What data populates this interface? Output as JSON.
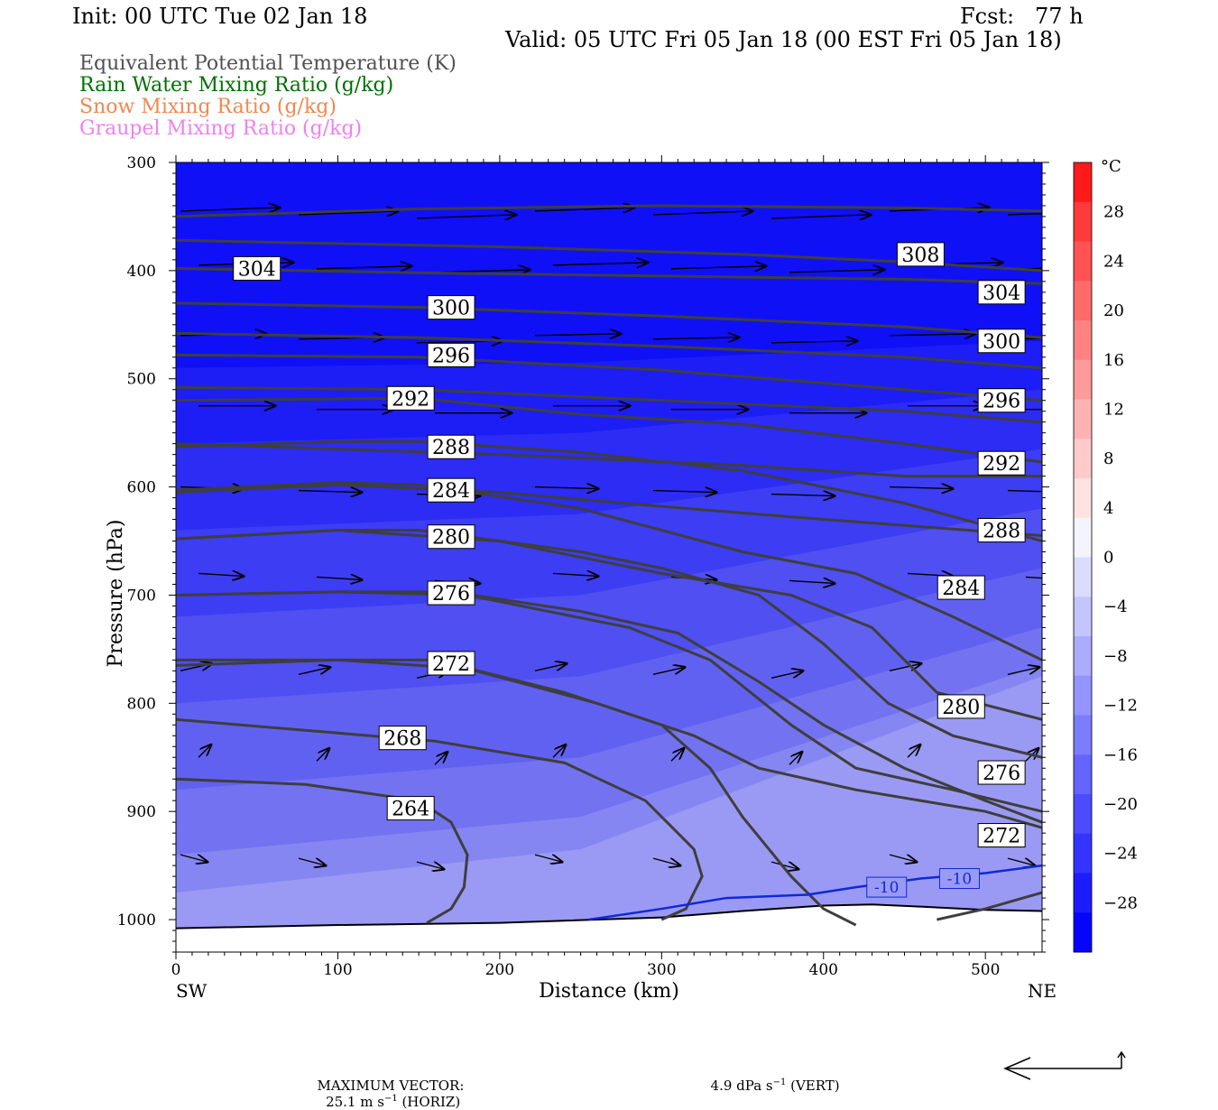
{
  "header": {
    "init": "Init: 00 UTC Tue 02 Jan 18",
    "fcst": "Fcst:   77 h",
    "valid": "Valid: 05 UTC Fri 05 Jan 18 (00 EST Fri 05 Jan 18)"
  },
  "fields": [
    {
      "label": "Equivalent Potential Temperature (K)",
      "color": "#505050"
    },
    {
      "label": "Rain Water Mixing Ratio (g/kg)",
      "color": "#007000"
    },
    {
      "label": "Snow Mixing Ratio (g/kg)",
      "color": "#f08850"
    },
    {
      "label": "Graupel Mixing Ratio (g/kg)",
      "color": "#f080f0"
    }
  ],
  "chart_data": {
    "type": "cross-section",
    "xlabel": "Distance (km)",
    "ylabel": "Pressure (hPa)",
    "xlim": [
      0,
      535
    ],
    "ylim": [
      1030,
      300
    ],
    "x_ticks": [
      "0",
      "100",
      "200",
      "300",
      "400",
      "500"
    ],
    "y_ticks": [
      "300",
      "400",
      "500",
      "600",
      "700",
      "800",
      "900",
      "1000"
    ],
    "left_end": "SW",
    "right_end": "NE",
    "theta_e_contours": [
      {
        "label": "308",
        "lx": 460,
        "lp": 385,
        "points": [
          [
            0,
            350
          ],
          [
            150,
            343
          ],
          [
            300,
            340
          ],
          [
            450,
            342
          ],
          [
            535,
            345
          ]
        ]
      },
      {
        "label": "304",
        "lx": 50,
        "lp": 398,
        "points": [
          [
            0,
            398
          ],
          [
            150,
            402
          ],
          [
            300,
            405
          ],
          [
            450,
            408
          ],
          [
            535,
            412
          ]
        ]
      },
      {
        "label": "304",
        "lx": 510,
        "lp": 420,
        "points": [
          [
            0,
            372
          ],
          [
            200,
            378
          ],
          [
            350,
            385
          ],
          [
            450,
            392
          ],
          [
            535,
            400
          ]
        ]
      },
      {
        "label": "300",
        "lx": 170,
        "lp": 434,
        "points": [
          [
            0,
            430
          ],
          [
            150,
            434
          ],
          [
            300,
            442
          ],
          [
            450,
            452
          ],
          [
            535,
            462
          ]
        ]
      },
      {
        "label": "300",
        "lx": 510,
        "lp": 465,
        "points": [
          [
            0,
            458
          ],
          [
            150,
            462
          ],
          [
            300,
            470
          ],
          [
            450,
            480
          ],
          [
            535,
            490
          ]
        ]
      },
      {
        "label": "296",
        "lx": 170,
        "lp": 478,
        "points": [
          [
            0,
            478
          ],
          [
            150,
            480
          ],
          [
            300,
            492
          ],
          [
            450,
            510
          ],
          [
            535,
            520
          ]
        ]
      },
      {
        "label": "296",
        "lx": 510,
        "lp": 520,
        "points": [
          [
            0,
            508
          ],
          [
            150,
            510
          ],
          [
            300,
            520
          ],
          [
            450,
            530
          ],
          [
            535,
            540
          ]
        ]
      },
      {
        "label": "292",
        "lx": 145,
        "lp": 518,
        "points": [
          [
            0,
            520
          ],
          [
            150,
            518
          ],
          [
            250,
            533
          ],
          [
            350,
            542
          ],
          [
            450,
            560
          ],
          [
            535,
            577
          ]
        ]
      },
      {
        "label": "292",
        "lx": 510,
        "lp": 578,
        "points": [
          [
            0,
            560
          ],
          [
            100,
            565
          ],
          [
            200,
            570
          ],
          [
            350,
            580
          ],
          [
            450,
            590
          ],
          [
            535,
            590
          ]
        ]
      },
      {
        "label": "288",
        "lx": 170,
        "lp": 563,
        "points": [
          [
            0,
            563
          ],
          [
            100,
            558
          ],
          [
            150,
            558
          ],
          [
            250,
            568
          ],
          [
            350,
            585
          ],
          [
            450,
            615
          ],
          [
            535,
            650
          ]
        ]
      },
      {
        "label": "288",
        "lx": 510,
        "lp": 640,
        "points": [
          [
            0,
            605
          ],
          [
            100,
            598
          ],
          [
            200,
            605
          ],
          [
            300,
            618
          ],
          [
            400,
            630
          ],
          [
            535,
            645
          ]
        ]
      },
      {
        "label": "284",
        "lx": 170,
        "lp": 603,
        "points": [
          [
            0,
            603
          ],
          [
            100,
            596
          ],
          [
            150,
            598
          ],
          [
            250,
            620
          ],
          [
            350,
            660
          ],
          [
            420,
            680
          ],
          [
            480,
            720
          ],
          [
            535,
            760
          ]
        ]
      },
      {
        "label": "284",
        "lx": 485,
        "lp": 693,
        "points": [
          [
            0,
            648
          ],
          [
            100,
            640
          ],
          [
            200,
            650
          ],
          [
            300,
            680
          ],
          [
            380,
            700
          ],
          [
            430,
            730
          ],
          [
            470,
            790
          ],
          [
            535,
            815
          ]
        ]
      },
      {
        "label": "280",
        "lx": 170,
        "lp": 646,
        "points": [
          [
            0,
            648
          ],
          [
            100,
            640
          ],
          [
            150,
            640
          ],
          [
            250,
            660
          ],
          [
            300,
            675
          ],
          [
            360,
            700
          ],
          [
            400,
            745
          ],
          [
            440,
            800
          ],
          [
            480,
            830
          ],
          [
            535,
            850
          ]
        ]
      },
      {
        "label": "280",
        "lx": 485,
        "lp": 803,
        "points": [
          [
            0,
            700
          ],
          [
            100,
            697
          ],
          [
            180,
            700
          ],
          [
            280,
            730
          ],
          [
            330,
            760
          ],
          [
            380,
            820
          ],
          [
            420,
            860
          ],
          [
            480,
            880
          ],
          [
            535,
            900
          ]
        ]
      },
      {
        "label": "276",
        "lx": 170,
        "lp": 698,
        "points": [
          [
            0,
            700
          ],
          [
            100,
            697
          ],
          [
            170,
            697
          ],
          [
            250,
            715
          ],
          [
            310,
            735
          ],
          [
            360,
            780
          ],
          [
            400,
            820
          ],
          [
            450,
            860
          ],
          [
            500,
            890
          ],
          [
            535,
            910
          ]
        ]
      },
      {
        "label": "276",
        "lx": 510,
        "lp": 864,
        "points": [
          [
            0,
            760
          ],
          [
            100,
            760
          ],
          [
            180,
            768
          ],
          [
            260,
            800
          ],
          [
            320,
            830
          ],
          [
            360,
            860
          ],
          [
            420,
            880
          ],
          [
            500,
            900
          ],
          [
            535,
            915
          ]
        ]
      },
      {
        "label": "272",
        "lx": 170,
        "lp": 763,
        "points": [
          [
            0,
            765
          ],
          [
            100,
            760
          ],
          [
            160,
            760
          ],
          [
            240,
            790
          ],
          [
            300,
            820
          ],
          [
            330,
            860
          ],
          [
            350,
            905
          ],
          [
            380,
            960
          ],
          [
            400,
            990
          ],
          [
            420,
            1005
          ]
        ]
      },
      {
        "label": "272",
        "lx": 510,
        "lp": 922,
        "points": [
          [
            470,
            1000
          ],
          [
            500,
            990
          ],
          [
            535,
            975
          ]
        ]
      },
      {
        "label": "268",
        "lx": 140,
        "lp": 832,
        "points": [
          [
            0,
            815
          ],
          [
            80,
            825
          ],
          [
            160,
            835
          ],
          [
            240,
            855
          ],
          [
            290,
            890
          ],
          [
            320,
            935
          ],
          [
            325,
            960
          ],
          [
            315,
            990
          ],
          [
            300,
            1000
          ]
        ]
      },
      {
        "label": "264",
        "lx": 145,
        "lp": 897,
        "points": [
          [
            0,
            870
          ],
          [
            80,
            875
          ],
          [
            150,
            890
          ],
          [
            170,
            910
          ],
          [
            180,
            940
          ],
          [
            178,
            970
          ],
          [
            170,
            990
          ],
          [
            155,
            1003
          ]
        ]
      }
    ],
    "temperature_contours": [
      {
        "label": "-10",
        "points": [
          [
            255,
            1000
          ],
          [
            300,
            990
          ],
          [
            340,
            980
          ],
          [
            390,
            977
          ],
          [
            420,
            970
          ],
          [
            460,
            962
          ],
          [
            500,
            957
          ],
          [
            535,
            950
          ]
        ]
      }
    ],
    "colorbar": {
      "unit": "°C",
      "tick_labels": [
        "28",
        "24",
        "20",
        "16",
        "12",
        "8",
        "4",
        "0",
        "−4",
        "−8",
        "−12",
        "−16",
        "−20",
        "−24",
        "−28"
      ],
      "colors": [
        "#ff1a1a",
        "#ff3a3a",
        "#ff5252",
        "#ff6a6a",
        "#ff8282",
        "#ff9a9a",
        "#ffb2b2",
        "#ffcaca",
        "#ffe2e2",
        "#f4f4ff",
        "#dcdcff",
        "#c4c4ff",
        "#acacff",
        "#9494ff",
        "#7c7cff",
        "#6464ff",
        "#4c4cff",
        "#3434ff",
        "#1c1cff",
        "#0404ff"
      ]
    },
    "max_vector_horizontal": "25.1 m s",
    "max_vector_vertical": "4.9 dPa s"
  },
  "footer": {
    "max_label": "MAXIMUM VECTOR:",
    "horiz": "25.1 m s",
    "horiz_suffix": " (HORIZ)",
    "vert": "4.9 dPa s",
    "vert_suffix": " (VERT)",
    "exp": "−1"
  }
}
